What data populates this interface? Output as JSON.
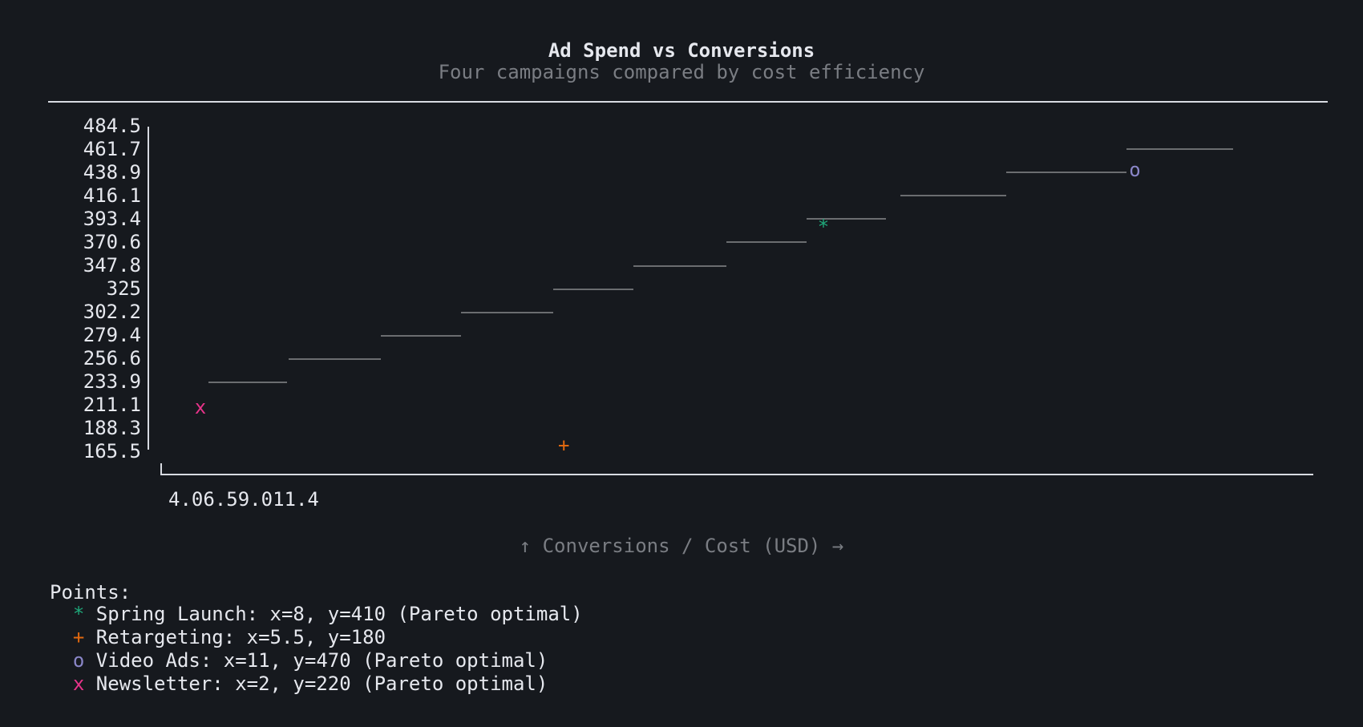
{
  "chart_data": {
    "type": "scatter",
    "title": "Ad Spend vs Conversions",
    "subtitle": "Four campaigns compared by cost efficiency",
    "xlabel": "↑ Conversions / Cost (USD) →",
    "x_tick_labels": [
      "4.0",
      "6.5",
      "9.0",
      "11.4"
    ],
    "y_tick_labels": [
      "484.5",
      "461.7",
      "438.9",
      "416.1",
      "393.4",
      "370.6",
      "347.8",
      "325",
      "302.2",
      "279.4",
      "256.6",
      "233.9",
      "211.1",
      "188.3",
      "165.5"
    ],
    "ylim": [
      165.5,
      484.5
    ],
    "frontier": "Pareto frontier (step line)",
    "series": [
      {
        "name": "Spring Launch",
        "marker": "*",
        "color": "#1fa87a",
        "x": 8,
        "y": 410,
        "pareto": true
      },
      {
        "name": "Retargeting",
        "marker": "+",
        "color": "#e0680f",
        "x": 5.5,
        "y": 180,
        "pareto": false
      },
      {
        "name": "Video Ads",
        "marker": "o",
        "color": "#8a86c8",
        "x": 11,
        "y": 470,
        "pareto": true
      },
      {
        "name": "Newsletter",
        "marker": "x",
        "color": "#e8338a",
        "x": 2,
        "y": 220,
        "pareto": true
      }
    ],
    "legend_title": "Points:",
    "legend_lines": [
      "Spring Launch: x=8, y=410 (Pareto optimal)",
      "Retargeting: x=5.5, y=180",
      "Video Ads: x=11, y=470 (Pareto optimal)",
      "Newsletter: x=2, y=220 (Pareto optimal)"
    ]
  }
}
